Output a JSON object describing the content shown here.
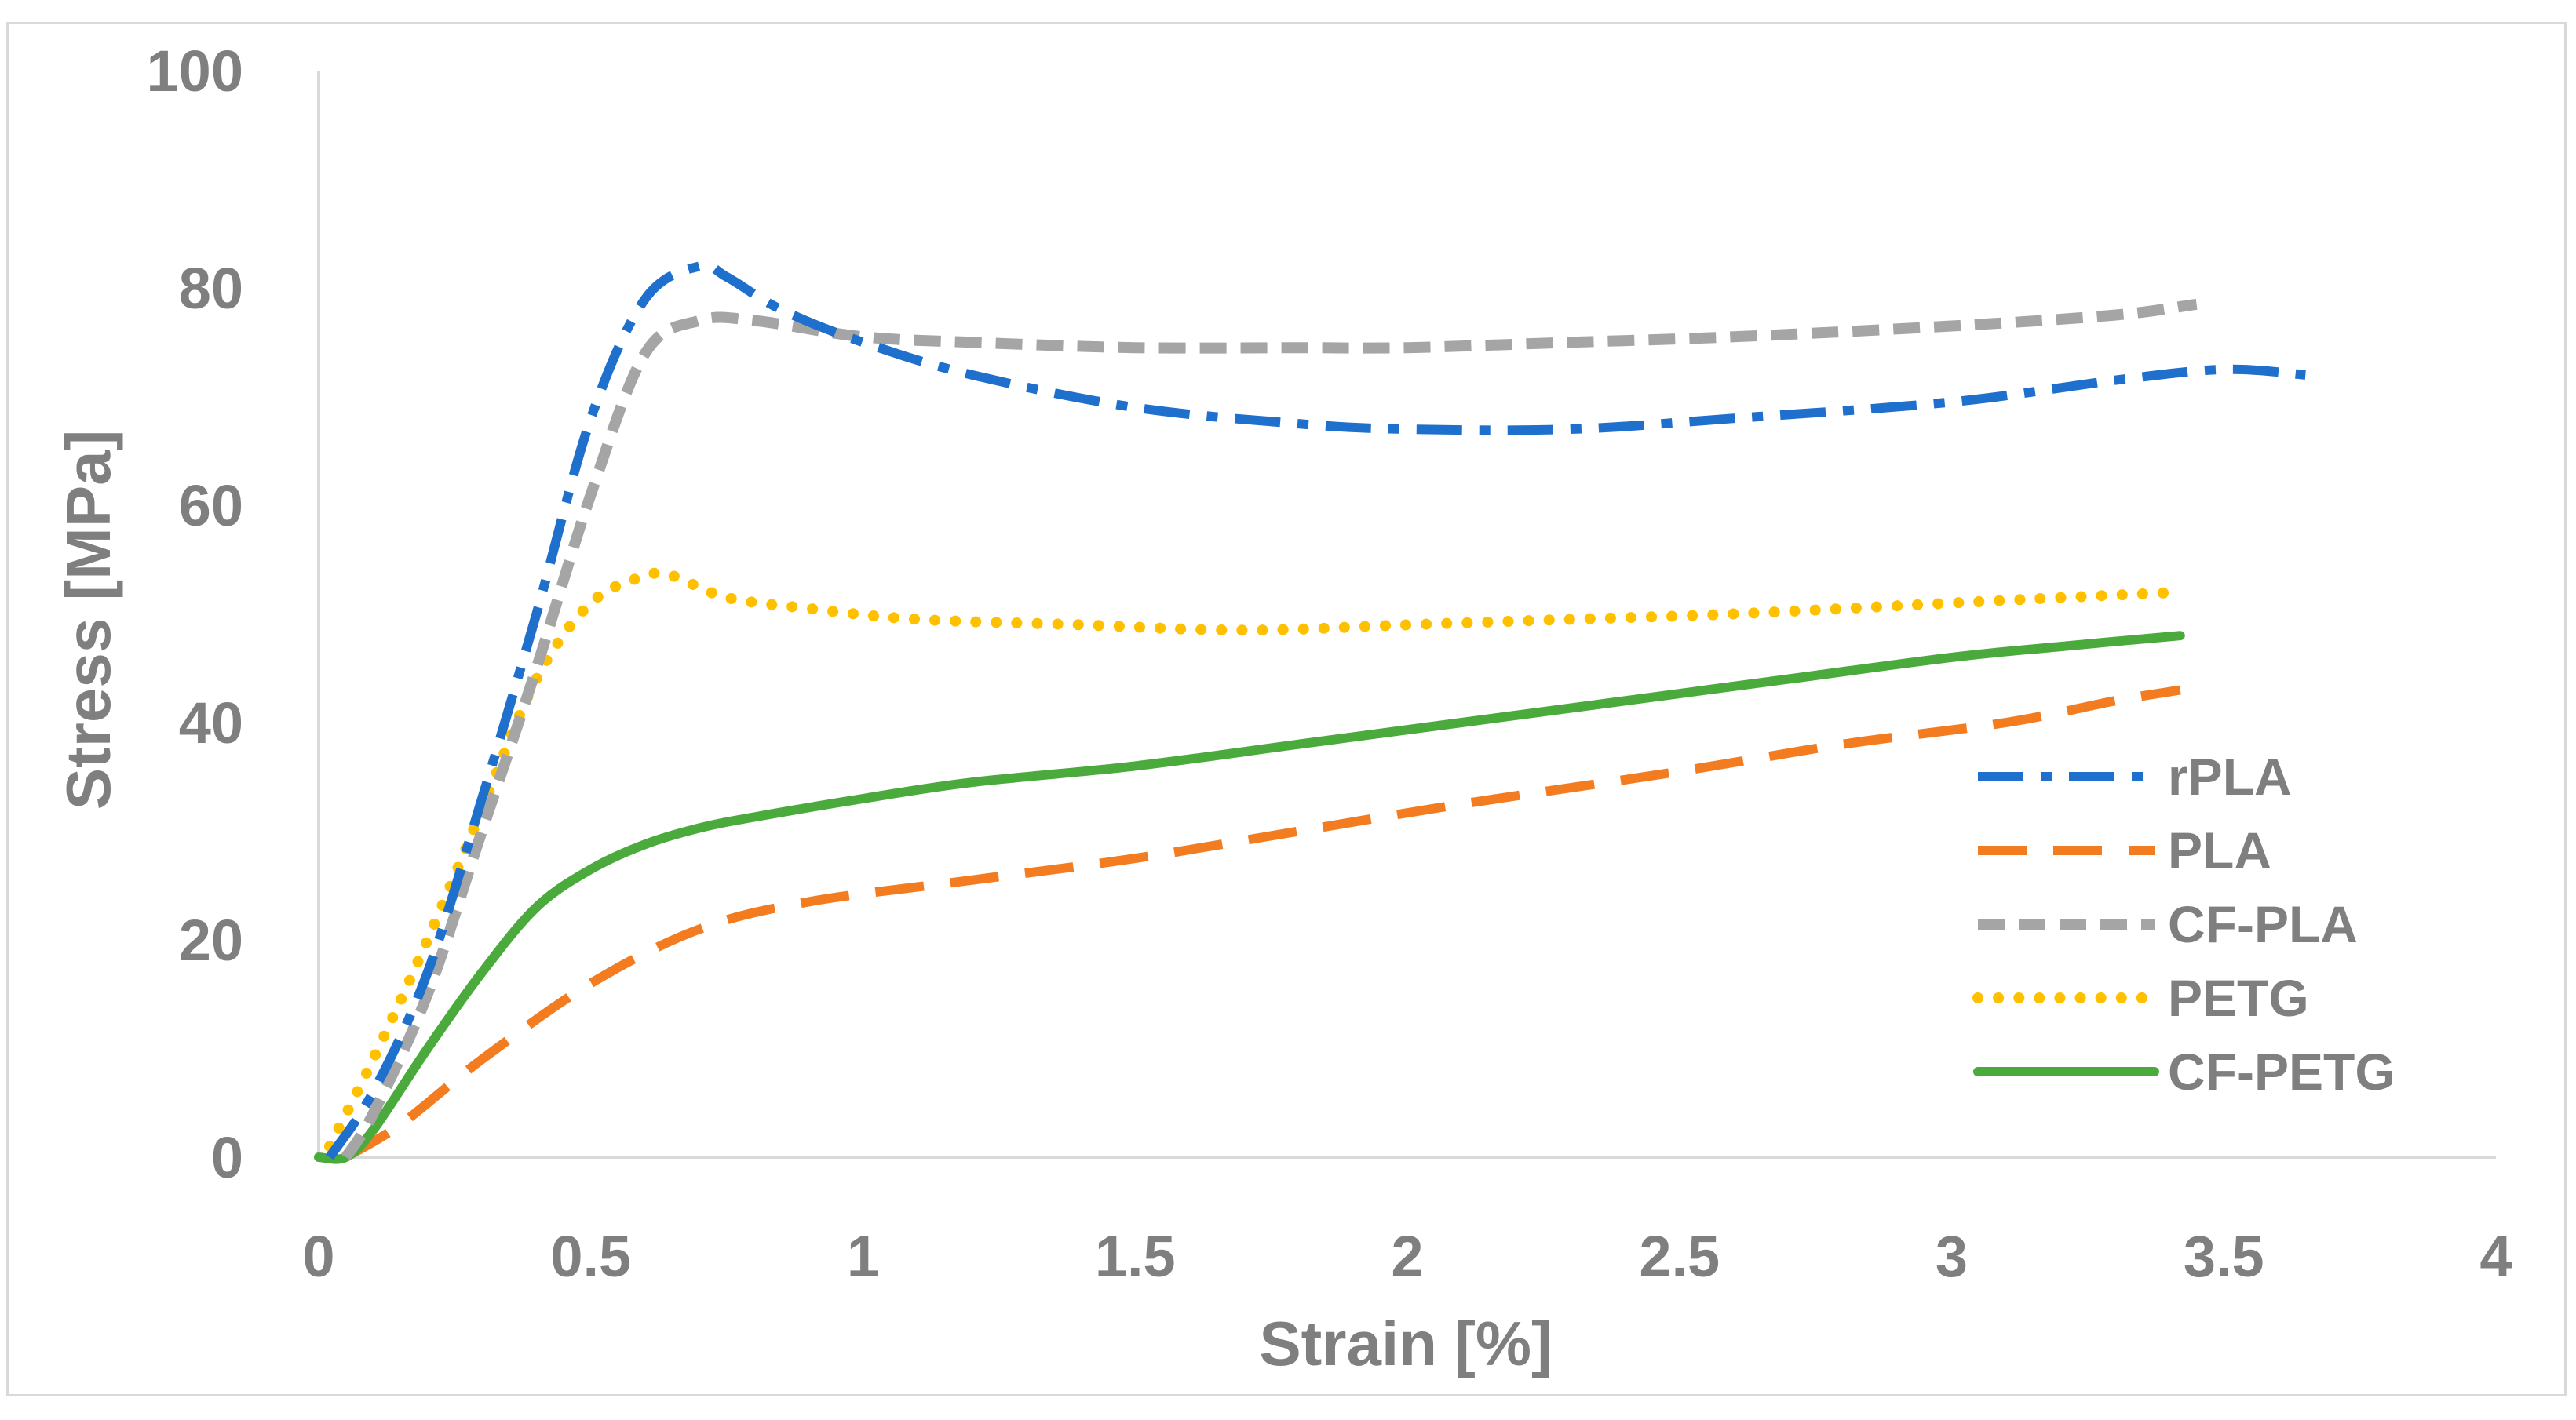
{
  "chart_data": {
    "type": "line",
    "title": "",
    "xlabel": "Strain [%]",
    "ylabel": "Stress [MPa]",
    "xlim": [
      0,
      4
    ],
    "ylim": [
      0,
      100
    ],
    "x_ticks": [
      "0",
      "0.5",
      "1",
      "1.5",
      "2",
      "2.5",
      "3",
      "3.5",
      "4"
    ],
    "y_ticks": [
      "0",
      "20",
      "40",
      "60",
      "80",
      "100"
    ],
    "x_tick_values": [
      0,
      0.5,
      1,
      1.5,
      2,
      2.5,
      3,
      3.5,
      4
    ],
    "y_tick_values": [
      0,
      20,
      40,
      60,
      80,
      100
    ],
    "grid": false,
    "legend_position": "right",
    "series": [
      {
        "name": "rPLA",
        "color": "#1f6fcc",
        "style": "dash-dot",
        "x": [
          0.02,
          0.1,
          0.2,
          0.3,
          0.4,
          0.5,
          0.6,
          0.7,
          0.75,
          0.85,
          1.0,
          1.2,
          1.5,
          1.8,
          2.0,
          2.3,
          2.6,
          3.0,
          3.3,
          3.5,
          3.65
        ],
        "y": [
          0,
          6,
          17,
          33,
          50,
          68,
          79,
          82,
          81,
          78,
          75,
          72,
          69,
          67.5,
          67,
          67,
          68,
          69.5,
          71.5,
          72.5,
          72
        ]
      },
      {
        "name": "PLA",
        "color": "#f47c20",
        "style": "long-dash",
        "x": [
          0.05,
          0.15,
          0.3,
          0.5,
          0.7,
          0.9,
          1.2,
          1.5,
          1.8,
          2.1,
          2.5,
          2.8,
          3.1,
          3.3,
          3.42
        ],
        "y": [
          0,
          3,
          9,
          16,
          21,
          23.5,
          25.5,
          27.5,
          30,
          32.5,
          35.5,
          38,
          40,
          42,
          43
        ]
      },
      {
        "name": "CF-PLA",
        "color": "#a5a5a5",
        "style": "dash",
        "x": [
          0.05,
          0.1,
          0.2,
          0.3,
          0.4,
          0.5,
          0.6,
          0.7,
          0.8,
          1.0,
          1.2,
          1.5,
          1.8,
          2.0,
          2.3,
          2.6,
          3.0,
          3.3,
          3.45
        ],
        "y": [
          0,
          4,
          15,
          30,
          45,
          61,
          74,
          77,
          77,
          75.5,
          75,
          74.5,
          74.5,
          74.5,
          75,
          75.5,
          76.5,
          77.5,
          78.5
        ]
      },
      {
        "name": "PETG",
        "color": "#ffc000",
        "style": "dot",
        "x": [
          0.02,
          0.1,
          0.2,
          0.3,
          0.4,
          0.5,
          0.6,
          0.65,
          0.75,
          0.9,
          1.1,
          1.4,
          1.7,
          2.0,
          2.3,
          2.6,
          3.0,
          3.2,
          3.42
        ],
        "y": [
          1,
          9,
          20,
          32,
          44,
          51,
          53.5,
          53.5,
          51.5,
          50.5,
          49.5,
          49,
          48.5,
          49,
          49.5,
          50,
          51,
          51.5,
          52
        ]
      },
      {
        "name": "CF-PETG",
        "color": "#4aab3c",
        "style": "solid",
        "x": [
          0.0,
          0.05,
          0.1,
          0.2,
          0.3,
          0.4,
          0.5,
          0.6,
          0.7,
          0.8,
          1.0,
          1.2,
          1.5,
          1.8,
          2.1,
          2.4,
          2.7,
          3.0,
          3.2,
          3.42
        ],
        "y": [
          0,
          0,
          2.5,
          10,
          17,
          23,
          26.5,
          28.8,
          30.3,
          31.3,
          33,
          34.5,
          36,
          38,
          40,
          42,
          44,
          46,
          47,
          48
        ]
      }
    ]
  }
}
